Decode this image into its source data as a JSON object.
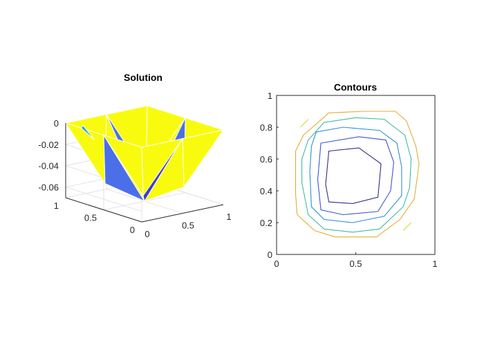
{
  "chart_data": [
    {
      "type": "surface",
      "title": "Solution",
      "xlim": [
        0,
        1
      ],
      "ylim": [
        0,
        1
      ],
      "zlim": [
        -0.07,
        0
      ],
      "x_ticks": [
        "0",
        "0.5",
        "1"
      ],
      "y_ticks": [
        "0",
        "0.5",
        "1"
      ],
      "z_ticks": [
        "0",
        "-0.02",
        "-0.04",
        "-0.06"
      ],
      "z_tick_values": [
        0,
        -0.02,
        -0.04,
        -0.06
      ],
      "x_tick_values": [
        0,
        0.5,
        1
      ],
      "y_tick_values": [
        0,
        0.5,
        1
      ],
      "mesh_nodes": [
        {
          "id": "n1",
          "x": 0,
          "y": 0,
          "z": 0
        },
        {
          "id": "n2",
          "x": 0.5,
          "y": 0,
          "z": 0
        },
        {
          "id": "n3",
          "x": 1,
          "y": 0,
          "z": 0
        },
        {
          "id": "n4",
          "x": 0,
          "y": 0.5,
          "z": 0
        },
        {
          "id": "n5",
          "x": 0.5,
          "y": 0.5,
          "z": -0.07
        },
        {
          "id": "n6",
          "x": 1,
          "y": 0.5,
          "z": 0
        },
        {
          "id": "n7",
          "x": 0,
          "y": 1,
          "z": 0
        },
        {
          "id": "n8",
          "x": 0.5,
          "y": 1,
          "z": 0
        },
        {
          "id": "n9",
          "x": 1,
          "y": 1,
          "z": 0
        },
        {
          "id": "m1",
          "x": 0.25,
          "y": 0.25,
          "z": -0.055
        },
        {
          "id": "m2",
          "x": 0.75,
          "y": 0.25,
          "z": -0.055
        },
        {
          "id": "m3",
          "x": 0.25,
          "y": 0.75,
          "z": -0.055
        },
        {
          "id": "m4",
          "x": 0.75,
          "y": 0.75,
          "z": -0.055
        }
      ],
      "colormap": "parula"
    },
    {
      "type": "contour",
      "title": "Contours",
      "xlim": [
        0,
        1
      ],
      "ylim": [
        0,
        1
      ],
      "x_ticks": [
        "0",
        "0.5",
        "1"
      ],
      "y_ticks": [
        "0",
        "0.2",
        "0.4",
        "0.6",
        "0.8",
        "1"
      ],
      "x_tick_values": [
        0,
        0.5,
        1
      ],
      "y_tick_values": [
        0,
        0.2,
        0.4,
        0.6,
        0.8,
        1
      ],
      "levels": [
        {
          "color": "#352a87",
          "points": [
            [
              0.33,
              0.65
            ],
            [
              0.52,
              0.67
            ],
            [
              0.66,
              0.57
            ],
            [
              0.64,
              0.36
            ],
            [
              0.48,
              0.32
            ],
            [
              0.33,
              0.33
            ],
            [
              0.31,
              0.44
            ]
          ]
        },
        {
          "color": "#3f53d3",
          "points": [
            [
              0.28,
              0.7
            ],
            [
              0.52,
              0.74
            ],
            [
              0.69,
              0.72
            ],
            [
              0.74,
              0.58
            ],
            [
              0.72,
              0.4
            ],
            [
              0.64,
              0.27
            ],
            [
              0.42,
              0.25
            ],
            [
              0.28,
              0.28
            ],
            [
              0.26,
              0.47
            ]
          ]
        },
        {
          "color": "#2b8fd6",
          "points": [
            [
              0.25,
              0.77
            ],
            [
              0.42,
              0.8
            ],
            [
              0.65,
              0.78
            ],
            [
              0.76,
              0.7
            ],
            [
              0.79,
              0.55
            ],
            [
              0.79,
              0.37
            ],
            [
              0.68,
              0.24
            ],
            [
              0.48,
              0.2
            ],
            [
              0.3,
              0.22
            ],
            [
              0.22,
              0.3
            ],
            [
              0.21,
              0.52
            ],
            [
              0.22,
              0.68
            ]
          ]
        },
        {
          "color": "#3fbc9c",
          "points": [
            [
              0.3,
              0.83
            ],
            [
              0.5,
              0.86
            ],
            [
              0.68,
              0.85
            ],
            [
              0.81,
              0.75
            ],
            [
              0.85,
              0.6
            ],
            [
              0.84,
              0.42
            ],
            [
              0.8,
              0.3
            ],
            [
              0.65,
              0.16
            ],
            [
              0.48,
              0.14
            ],
            [
              0.3,
              0.16
            ],
            [
              0.2,
              0.25
            ],
            [
              0.16,
              0.45
            ],
            [
              0.16,
              0.6
            ],
            [
              0.2,
              0.72
            ]
          ]
        },
        {
          "color": "#e3ad32",
          "points": [
            [
              0.12,
              0.65
            ],
            [
              0.17,
              0.75
            ],
            [
              0.33,
              0.89
            ],
            [
              0.55,
              0.9
            ],
            [
              0.75,
              0.9
            ],
            [
              0.82,
              0.84
            ],
            [
              0.88,
              0.68
            ],
            [
              0.9,
              0.57
            ],
            [
              0.87,
              0.35
            ],
            [
              0.78,
              0.22
            ],
            [
              0.63,
              0.11
            ],
            [
              0.5,
              0.11
            ],
            [
              0.37,
              0.11
            ],
            [
              0.24,
              0.15
            ],
            [
              0.13,
              0.25
            ],
            [
              0.12,
              0.38
            ],
            [
              0.12,
              0.55
            ]
          ]
        },
        {
          "color": "#d6d62a",
          "points": [
            [
              0.15,
              0.8
            ],
            [
              0.2,
              0.85
            ]
          ]
        },
        {
          "color": "#d6d62a",
          "points": [
            [
              0.8,
              0.15
            ],
            [
              0.85,
              0.2
            ]
          ]
        }
      ]
    }
  ]
}
